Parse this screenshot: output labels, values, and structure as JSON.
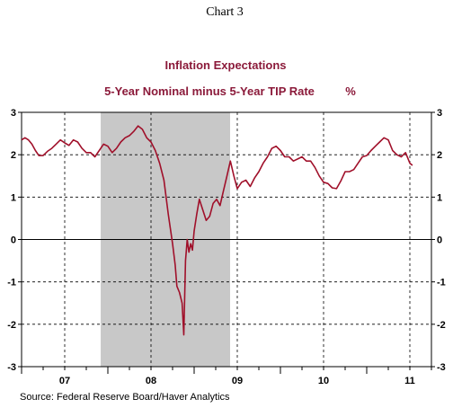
{
  "chart_data": {
    "type": "line",
    "chart_label": "Chart 3",
    "title": "Inflation Expectations",
    "subtitle": "5-Year Nominal minus 5-Year TIP Rate",
    "unit": "%",
    "source": "Source:  Federal Reserve Board/Haver Analytics",
    "x_tick_labels": [
      "07",
      "08",
      "09",
      "10",
      "11"
    ],
    "y_tick_labels": [
      "3",
      "2",
      "1",
      "0",
      "-1",
      "-2",
      "-3"
    ],
    "ylim": [
      -3,
      3
    ],
    "xlim": [
      2007.0,
      2011.75
    ],
    "recession": [
      2007.917,
      2009.417
    ],
    "grid": "dashed",
    "colors": {
      "series": "#a0102a",
      "shading": "#c8c8c8",
      "title": "#8b1a3a"
    },
    "series": [
      {
        "name": "",
        "x": [
          2007.0,
          2007.04,
          2007.08,
          2007.12,
          2007.16,
          2007.2,
          2007.25,
          2007.3,
          2007.35,
          2007.4,
          2007.45,
          2007.5,
          2007.55,
          2007.6,
          2007.65,
          2007.7,
          2007.75,
          2007.8,
          2007.85,
          2007.9,
          2007.95,
          2008.0,
          2008.05,
          2008.1,
          2008.15,
          2008.2,
          2008.25,
          2008.3,
          2008.35,
          2008.4,
          2008.45,
          2008.5,
          2008.55,
          2008.6,
          2008.65,
          2008.7,
          2008.75,
          2008.78,
          2008.8,
          2008.83,
          2008.86,
          2008.88,
          2008.9,
          2008.92,
          2008.94,
          2008.96,
          2008.98,
          2009.0,
          2009.03,
          2009.06,
          2009.1,
          2009.14,
          2009.18,
          2009.22,
          2009.26,
          2009.3,
          2009.34,
          2009.38,
          2009.42,
          2009.46,
          2009.5,
          2009.55,
          2009.6,
          2009.65,
          2009.7,
          2009.75,
          2009.8,
          2009.85,
          2009.9,
          2009.95,
          2010.0,
          2010.05,
          2010.1,
          2010.15,
          2010.2,
          2010.25,
          2010.3,
          2010.35,
          2010.4,
          2010.45,
          2010.5,
          2010.55,
          2010.6,
          2010.65,
          2010.7,
          2010.75,
          2010.8,
          2010.85,
          2010.9,
          2010.95,
          2011.0,
          2011.05,
          2011.1,
          2011.15,
          2011.2,
          2011.25,
          2011.3,
          2011.35,
          2011.4,
          2011.45,
          2011.5,
          2011.53
        ],
        "values": [
          2.35,
          2.4,
          2.35,
          2.25,
          2.1,
          1.98,
          1.98,
          2.08,
          2.15,
          2.25,
          2.35,
          2.28,
          2.22,
          2.35,
          2.3,
          2.15,
          2.05,
          2.05,
          1.95,
          2.1,
          2.25,
          2.2,
          2.05,
          2.15,
          2.3,
          2.4,
          2.45,
          2.55,
          2.68,
          2.6,
          2.4,
          2.3,
          2.1,
          1.8,
          1.4,
          0.6,
          -0.1,
          -0.6,
          -1.1,
          -1.25,
          -1.5,
          -2.25,
          -0.5,
          0.0,
          -0.3,
          -0.1,
          -0.25,
          0.2,
          0.6,
          0.95,
          0.7,
          0.45,
          0.55,
          0.85,
          0.95,
          0.8,
          1.15,
          1.5,
          1.85,
          1.5,
          1.2,
          1.35,
          1.4,
          1.25,
          1.45,
          1.6,
          1.8,
          1.95,
          2.15,
          2.2,
          2.1,
          1.95,
          1.95,
          1.85,
          1.9,
          1.95,
          1.85,
          1.85,
          1.7,
          1.5,
          1.35,
          1.32,
          1.22,
          1.2,
          1.38,
          1.6,
          1.6,
          1.65,
          1.8,
          1.95,
          1.98,
          2.1,
          2.2,
          2.3,
          2.4,
          2.35,
          2.1,
          2.0,
          1.95,
          2.05,
          1.8,
          1.75
        ]
      }
    ]
  }
}
